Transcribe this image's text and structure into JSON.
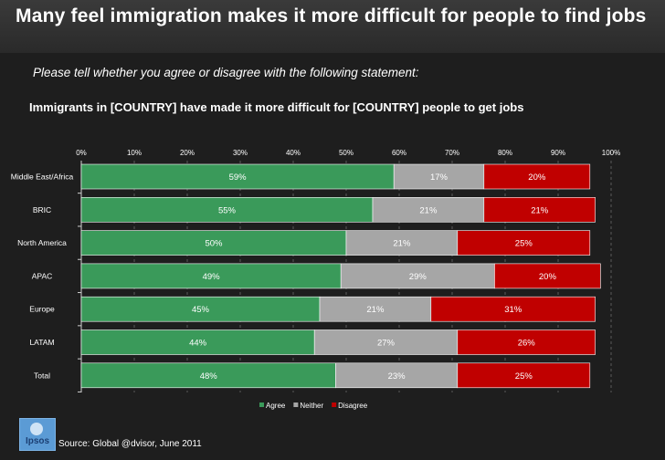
{
  "header": {
    "title": "Many feel immigration makes it more difficult for people to find jobs"
  },
  "question": "Please tell whether you agree or disagree with the following statement:",
  "statement": "Immigrants in [COUNTRY] have made it more difficult for [COUNTRY] people to get jobs",
  "footer": {
    "source": "Source: Global @dvisor, June 2011",
    "logo_text": "Ipsos"
  },
  "chart_data": {
    "type": "bar",
    "orientation": "horizontal",
    "stacked": true,
    "categories": [
      "Middle East/Africa",
      "BRIC",
      "North America",
      "APAC",
      "Europe",
      "LATAM",
      "Total"
    ],
    "series": [
      {
        "name": "Agree",
        "color": "#3a9a5a",
        "values": [
          59,
          55,
          50,
          49,
          45,
          44,
          48
        ]
      },
      {
        "name": "Neither",
        "color": "#a6a6a6",
        "values": [
          17,
          21,
          21,
          29,
          21,
          27,
          23
        ]
      },
      {
        "name": "Disagree",
        "color": "#c00000",
        "values": [
          20,
          21,
          25,
          20,
          31,
          26,
          25
        ]
      }
    ],
    "xlim": [
      0,
      100
    ],
    "x_ticks": [
      "0%",
      "10%",
      "20%",
      "30%",
      "40%",
      "50%",
      "60%",
      "70%",
      "80%",
      "90%",
      "100%"
    ],
    "grid": "vertical dashed",
    "legend": "bottom-center"
  }
}
